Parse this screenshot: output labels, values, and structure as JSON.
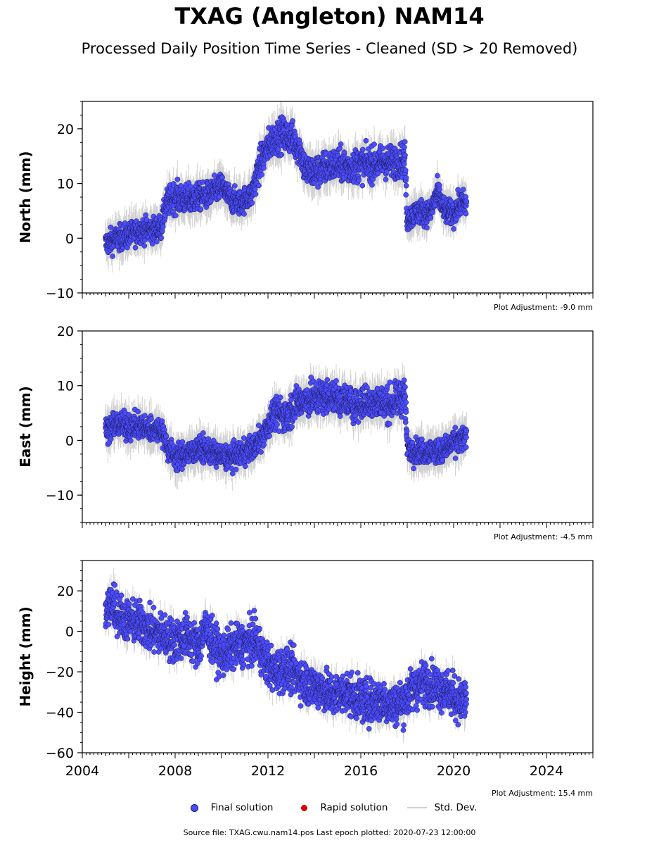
{
  "page": {
    "title": "TXAG (Angleton) NAM14",
    "subtitle": "Processed Daily Position Time Series - Cleaned (SD > 20 Removed)",
    "source_line": "Source file: TXAG.cwu.nam14.pos  Last epoch plotted: 2020-07-23 12:00:00"
  },
  "legend": {
    "final": "Final solution",
    "rapid": "Rapid solution",
    "std": "Std. Dev."
  },
  "colors": {
    "final": "#4c4cff",
    "final_edge": "#1a1a55",
    "rapid": "#dd0000",
    "std": "#bfbfbf"
  },
  "chart_data": [
    {
      "type": "scatter",
      "ylabel": "North (mm)",
      "adjustment": "Plot Adjustment: -9.0 mm",
      "xlim": [
        2004,
        2026
      ],
      "ylim": [
        -10,
        25
      ],
      "yticks": [
        -10,
        0,
        10,
        20
      ],
      "yticklabels": [
        "−10",
        "0",
        "10",
        "20"
      ],
      "series": [
        {
          "name": "Final solution",
          "x": [
            2005.0,
            2005.5,
            2006.0,
            2006.5,
            2007.0,
            2007.4,
            2007.6,
            2007.9,
            2008.5,
            2009.0,
            2009.5,
            2010.0,
            2010.4,
            2010.8,
            2011.3,
            2011.6,
            2011.9,
            2012.2,
            2012.6,
            2013.0,
            2013.4,
            2013.6,
            2014.0,
            2014.5,
            2015.0,
            2015.5,
            2016.0,
            2016.5,
            2017.0,
            2017.5,
            2017.9,
            2018.0,
            2018.5,
            2019.0,
            2019.3,
            2019.6,
            2020.0,
            2020.3,
            2020.56
          ],
          "y": [
            -1,
            0,
            0.5,
            1.5,
            1.5,
            2,
            6,
            7.5,
            7,
            7.5,
            8,
            9.5,
            7,
            6.5,
            8,
            13,
            16,
            18,
            19,
            18.5,
            16,
            12.5,
            12,
            13,
            13.5,
            13,
            13.5,
            13.5,
            14,
            14,
            14.5,
            3.5,
            5,
            4.5,
            8.5,
            5,
            4.5,
            6.5,
            6
          ],
          "spread": [
            1.5,
            1.5,
            1.5,
            1.5,
            1.5,
            1.5,
            1.8,
            1.8,
            1.8,
            1.6,
            1.6,
            1.6,
            1.5,
            1.5,
            1.8,
            2,
            2,
            2,
            2,
            2,
            2,
            2,
            2,
            2,
            2,
            2,
            2,
            2,
            2,
            2,
            2,
            1.5,
            1.5,
            1.5,
            1.6,
            1.5,
            1.5,
            1.6,
            1.6
          ]
        }
      ]
    },
    {
      "type": "scatter",
      "ylabel": "East (mm)",
      "adjustment": "Plot Adjustment: -4.5 mm",
      "xlim": [
        2004,
        2026
      ],
      "ylim": [
        -15,
        20
      ],
      "yticks": [
        -10,
        0,
        10,
        20
      ],
      "yticklabels": [
        "−10",
        "0",
        "10",
        "20"
      ],
      "series": [
        {
          "name": "Final solution",
          "x": [
            2005.0,
            2005.5,
            2006.0,
            2006.5,
            2007.0,
            2007.4,
            2007.7,
            2008.0,
            2008.5,
            2009.0,
            2009.5,
            2010.0,
            2010.5,
            2011.0,
            2011.5,
            2011.9,
            2012.3,
            2012.8,
            2013.3,
            2013.8,
            2014.3,
            2014.8,
            2015.3,
            2015.8,
            2016.3,
            2016.8,
            2017.3,
            2017.9,
            2018.0,
            2018.5,
            2019.0,
            2019.5,
            2020.0,
            2020.56
          ],
          "y": [
            2,
            3,
            2.5,
            2.5,
            2,
            2,
            -1.5,
            -3,
            -2.5,
            -1.5,
            -2,
            -3,
            -3,
            -2,
            -1,
            2,
            5,
            4.5,
            7,
            7.5,
            8,
            8,
            7,
            6.5,
            7,
            7,
            6.5,
            8.5,
            -1.5,
            -2,
            -2,
            -2,
            -0.5,
            0.5
          ],
          "spread": [
            1.5,
            1.5,
            1.5,
            1.5,
            1.5,
            1.5,
            1.5,
            1.5,
            1.5,
            1.5,
            1.5,
            1.5,
            1.5,
            1.5,
            1.6,
            1.8,
            2,
            2,
            2,
            2,
            2,
            2,
            2,
            2,
            2,
            2,
            2,
            2,
            1.5,
            1.5,
            1.5,
            1.5,
            1.5,
            1.5
          ]
        }
      ]
    },
    {
      "type": "scatter",
      "ylabel": "Height (mm)",
      "adjustment": "Plot Adjustment: 15.4 mm",
      "xlim": [
        2004,
        2026
      ],
      "ylim": [
        -60,
        35
      ],
      "yticks": [
        -60,
        -40,
        -20,
        0,
        20
      ],
      "yticklabels": [
        "−60",
        "−40",
        "−20",
        "0",
        "20"
      ],
      "xticks": [
        2004,
        2008,
        2012,
        2016,
        2020,
        2024
      ],
      "xticklabels": [
        "2004",
        "2008",
        "2012",
        "2016",
        "2020",
        "2024"
      ],
      "series": [
        {
          "name": "Final solution",
          "x": [
            2005.0,
            2005.3,
            2005.6,
            2006.0,
            2006.5,
            2007.0,
            2007.5,
            2008.0,
            2008.5,
            2009.0,
            2009.3,
            2009.6,
            2010.0,
            2010.5,
            2011.0,
            2011.5,
            2011.9,
            2012.3,
            2012.8,
            2013.3,
            2013.8,
            2014.3,
            2014.8,
            2015.3,
            2015.8,
            2016.3,
            2016.8,
            2017.3,
            2017.8,
            2018.3,
            2018.8,
            2019.3,
            2019.8,
            2020.3,
            2020.56
          ],
          "y": [
            8,
            15,
            8,
            5,
            4,
            0,
            -2,
            -5,
            -2,
            -8,
            2,
            -5,
            -12,
            -8,
            -6,
            -5,
            -15,
            -20,
            -18,
            -22,
            -27,
            -28,
            -32,
            -30,
            -33,
            -35,
            -34,
            -36,
            -35,
            -28,
            -25,
            -27,
            -30,
            -35,
            -33
          ],
          "spread": [
            7,
            8,
            7,
            7,
            7,
            7,
            7,
            7,
            7,
            7,
            7,
            7,
            7,
            7,
            7,
            7,
            7,
            7,
            7,
            7,
            7,
            7,
            7,
            7,
            7,
            7,
            7,
            7,
            7,
            7,
            7,
            7,
            7,
            7,
            7
          ]
        }
      ]
    }
  ]
}
